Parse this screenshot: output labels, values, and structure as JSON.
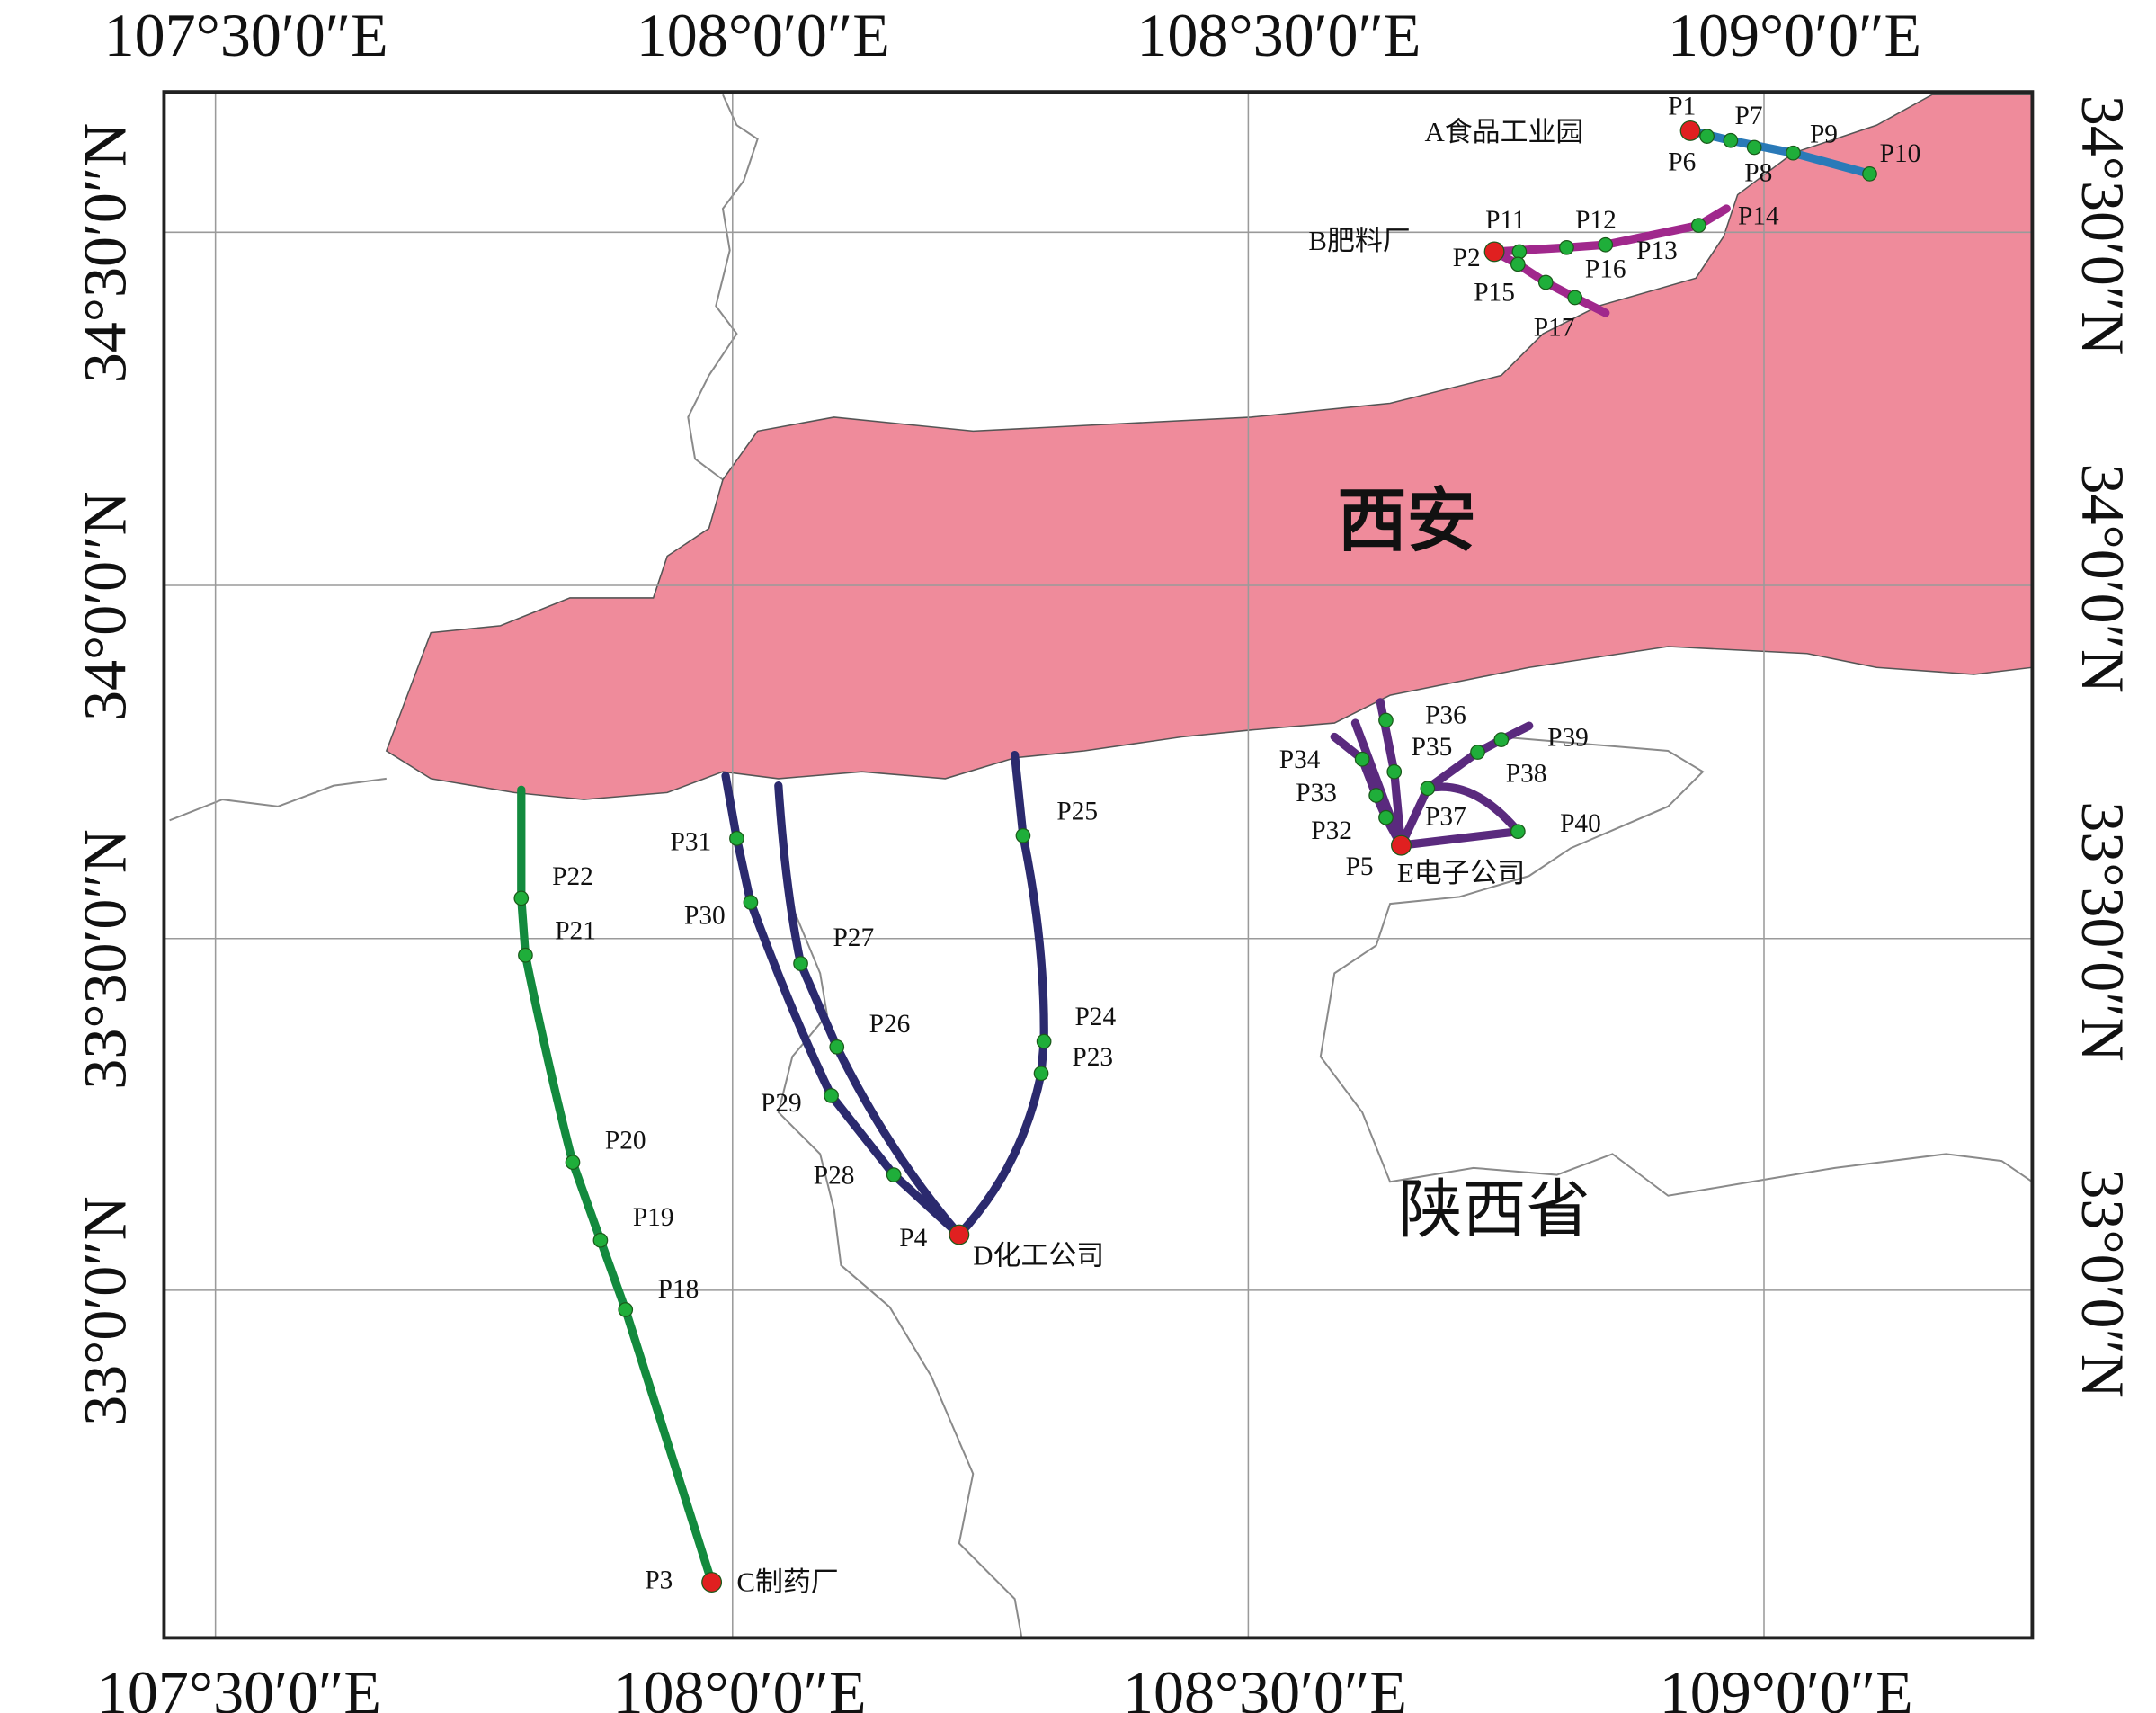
{
  "axes": {
    "top": [
      "107°30′0″E",
      "108°0′0″E",
      "108°30′0″E",
      "109°0′0″E"
    ],
    "bottom": [
      "107°30′0″E",
      "108°0′0″E",
      "108°30′0″E",
      "109°0′0″E"
    ],
    "left": [
      "34°30′0″N",
      "34°0′0″N",
      "33°30′0″N",
      "33°0′0″N"
    ],
    "right": [
      "34°30′0″N",
      "34°0′0″N",
      "33°30′0″N",
      "33°0′0″N"
    ]
  },
  "regions": {
    "city": "西安",
    "province": "陕西省"
  },
  "sites": [
    "A食品工业园",
    "B肥料厂",
    "C制药厂",
    "D化工公司",
    "E电子公司"
  ],
  "points": [
    "P1",
    "P2",
    "P3",
    "P4",
    "P5",
    "P6",
    "P7",
    "P8",
    "P9",
    "P10",
    "P11",
    "P12",
    "P13",
    "P14",
    "P15",
    "P16",
    "P17",
    "P18",
    "P19",
    "P20",
    "P21",
    "P22",
    "P23",
    "P24",
    "P25",
    "P26",
    "P27",
    "P28",
    "P29",
    "P30",
    "P31",
    "P32",
    "P33",
    "P34",
    "P35",
    "P36",
    "P37",
    "P38",
    "P39",
    "P40"
  ]
}
